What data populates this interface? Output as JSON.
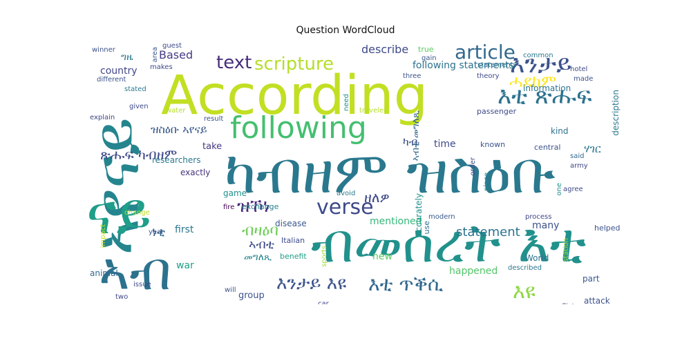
{
  "figure": {
    "title": "Question WordCloud"
  },
  "palette": {
    "background": "#ffffff",
    "title_color": "#111111",
    "colormap": "viridis"
  },
  "words": [
    {
      "text": "According",
      "color": "#c2df23"
    },
    {
      "text": "ካብዘም ዝስዕቡ",
      "color": "#2a788e"
    },
    {
      "text": "ብመሰረት እቲ",
      "color": "#21918c"
    },
    {
      "text": "ኣየናይ",
      "color": "#25858e"
    },
    {
      "text": "ናይ",
      "color": "#1f9e89"
    },
    {
      "text": "ኣብ",
      "color": "#2c728e"
    },
    {
      "text": "following",
      "color": "#44bf70"
    },
    {
      "text": "እንታይ",
      "color": "#3b528b"
    },
    {
      "text": "እቲ ጽሑፍ",
      "color": "#2c728e"
    },
    {
      "text": "verse",
      "color": "#3e4a89"
    },
    {
      "text": "article",
      "color": "#31688e"
    },
    {
      "text": "text",
      "color": "#472d7b"
    },
    {
      "text": "scripture",
      "color": "#b5de2b"
    },
    {
      "text": "ሓደከም",
      "color": "#fde725"
    },
    {
      "text": "ዝኾነ",
      "color": "#482878"
    },
    {
      "text": "እንታይ እዩ",
      "color": "#3b528b"
    },
    {
      "text": "እቲ ጥቕሲ",
      "color": "#31688e"
    },
    {
      "text": "እዩ",
      "color": "#8fd744"
    },
    {
      "text": "ብዛዕባ",
      "color": "#6ece58"
    },
    {
      "text": "ጽሑፍ ካብዘም",
      "color": "#3e4a89"
    },
    {
      "text": "ዝስዕቡ ኣየናይ",
      "color": "#38588c"
    },
    {
      "text": "ዘለዎ",
      "color": "#3e4a89"
    },
    {
      "text": "statement",
      "color": "#2c728e"
    },
    {
      "text": "describe",
      "color": "#3e4a89"
    },
    {
      "text": "Based",
      "color": "#443983"
    },
    {
      "text": "ግዜ",
      "color": "#2a788e"
    },
    {
      "text": "country",
      "color": "#404688"
    },
    {
      "text": "following statements",
      "color": "#2c728e"
    },
    {
      "text": "መግለጺ",
      "color": "#25858e"
    },
    {
      "text": "mentioned",
      "color": "#35b779"
    },
    {
      "text": "happened",
      "color": "#52c569"
    },
    {
      "text": "group",
      "color": "#3b528b"
    },
    {
      "text": "new",
      "color": "#5ec962"
    },
    {
      "text": "ኣብቲ",
      "color": "#3e4a89"
    },
    {
      "text": "ነቲ",
      "color": "#31688e"
    },
    {
      "text": "first",
      "color": "#2a788e"
    },
    {
      "text": "ሃገር",
      "color": "#2a788e"
    },
    {
      "text": "many",
      "color": "#3b528b"
    },
    {
      "text": "information",
      "color": "#2c728e"
    },
    {
      "text": "ካብ",
      "color": "#3b528b"
    },
    {
      "text": "ኣብቲ መግለጺ",
      "color": "#31688e"
    },
    {
      "text": "time",
      "color": "#3e4a89"
    },
    {
      "text": "war",
      "color": "#1f9e89"
    },
    {
      "text": "animal",
      "color": "#31688e"
    },
    {
      "text": "World",
      "color": "#2c728e"
    },
    {
      "text": "part",
      "color": "#38588c"
    },
    {
      "text": "attack",
      "color": "#3b528b"
    },
    {
      "text": "researchers",
      "color": "#2a788e"
    },
    {
      "text": "take",
      "color": "#443983"
    },
    {
      "text": "exactly",
      "color": "#46327e"
    },
    {
      "text": "game",
      "color": "#21918c"
    },
    {
      "text": "Italian",
      "color": "#3e4a89"
    },
    {
      "text": "disease",
      "color": "#38588c"
    },
    {
      "text": "exchange",
      "color": "#26828e"
    },
    {
      "text": "accurately",
      "color": "#21918c"
    },
    {
      "text": "known",
      "color": "#3b528b"
    },
    {
      "text": "kind",
      "color": "#2c728e"
    },
    {
      "text": "passenger",
      "color": "#3e4a89"
    },
    {
      "text": "description",
      "color": "#2a788e"
    },
    {
      "text": "central",
      "color": "#3b528b"
    },
    {
      "text": "said",
      "color": "#31688e"
    },
    {
      "text": "army",
      "color": "#404688"
    },
    {
      "text": "agree",
      "color": "#3e4a89"
    },
    {
      "text": "one",
      "color": "#21918c"
    },
    {
      "text": "process",
      "color": "#404688"
    },
    {
      "text": "helped",
      "color": "#3b528b"
    },
    {
      "text": "station",
      "color": "#a0da39"
    },
    {
      "text": "conflict",
      "color": "#3e4a89"
    },
    {
      "text": "described",
      "color": "#2a788e"
    },
    {
      "text": "modern",
      "color": "#38588c"
    },
    {
      "text": "use",
      "color": "#2c728e"
    },
    {
      "text": "benefit",
      "color": "#1f9e89"
    },
    {
      "text": "sports",
      "color": "#a0da39"
    },
    {
      "text": "car",
      "color": "#404688"
    },
    {
      "text": "will",
      "color": "#3b528b"
    },
    {
      "text": "two",
      "color": "#404688"
    },
    {
      "text": "issue",
      "color": "#3e4a89"
    },
    {
      "text": "year",
      "color": "#3b528b"
    },
    {
      "text": "change",
      "color": "#bddf26"
    },
    {
      "text": "impact",
      "color": "#c2df23"
    },
    {
      "text": "fire",
      "color": "#440154"
    },
    {
      "text": "result",
      "color": "#3b528b"
    },
    {
      "text": "water",
      "color": "#b5de2b"
    },
    {
      "text": "given",
      "color": "#3e4a89"
    },
    {
      "text": "explain",
      "color": "#404688"
    },
    {
      "text": "different",
      "color": "#3b528b"
    },
    {
      "text": "stated",
      "color": "#2a788e"
    },
    {
      "text": "makes",
      "color": "#3e4a89"
    },
    {
      "text": "area",
      "color": "#38588c"
    },
    {
      "text": "winner",
      "color": "#3b528b"
    },
    {
      "text": "guest",
      "color": "#3e4a89"
    },
    {
      "text": "true",
      "color": "#5ec962"
    },
    {
      "text": "gain",
      "color": "#38588c"
    },
    {
      "text": "three",
      "color": "#3b528b"
    },
    {
      "text": "theory",
      "color": "#3e4a89"
    },
    {
      "text": "common",
      "color": "#2a788e"
    },
    {
      "text": "made",
      "color": "#3b528b"
    },
    {
      "text": "hotel",
      "color": "#3e4a89"
    },
    {
      "text": "traveler",
      "color": "#b5de2b"
    },
    {
      "text": "need",
      "color": "#21918c"
    },
    {
      "text": "avoid",
      "color": "#2a788e"
    },
    {
      "text": "place",
      "color": "#26828e"
    },
    {
      "text": "order",
      "color": "#3e4a89"
    },
    {
      "text": "statements",
      "color": "#2c728e"
    }
  ]
}
